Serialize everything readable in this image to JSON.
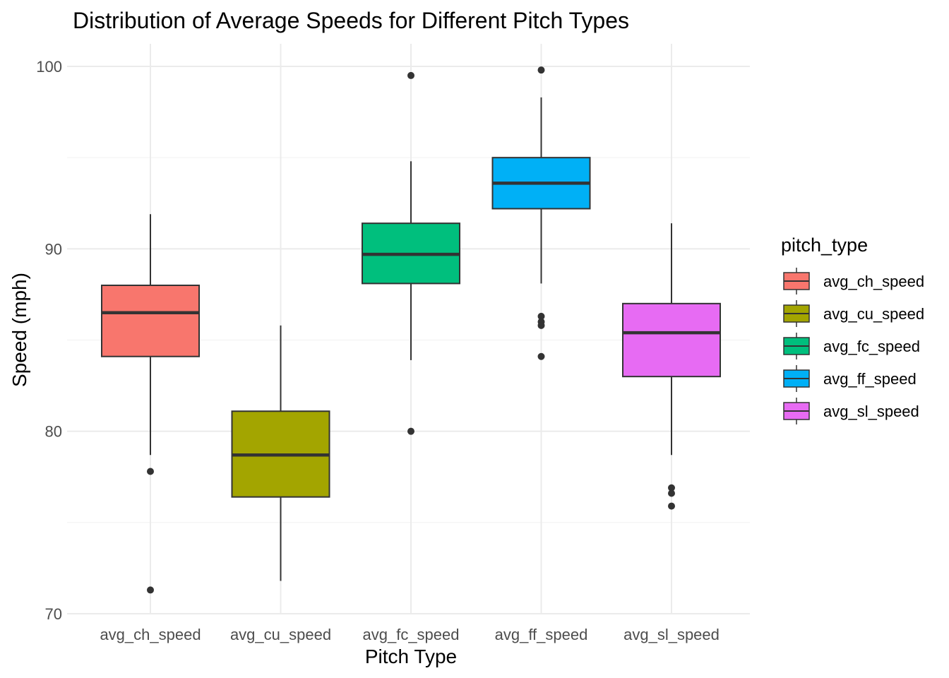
{
  "chart_data": {
    "type": "boxplot",
    "title": "Distribution of Average Speeds for Different Pitch Types",
    "xlabel": "Pitch Type",
    "ylabel": "Speed (mph)",
    "ylim": [
      70,
      100
    ],
    "yticks": [
      70,
      80,
      90,
      100
    ],
    "grid": true,
    "legend": {
      "title": "pitch_type",
      "position": "right"
    },
    "categories": [
      "avg_ch_speed",
      "avg_cu_speed",
      "avg_fc_speed",
      "avg_ff_speed",
      "avg_sl_speed"
    ],
    "boxes": [
      {
        "name": "avg_ch_speed",
        "color": "#F8766D",
        "whisker_low": 78.7,
        "q1": 84.1,
        "median": 86.5,
        "q3": 88.0,
        "whisker_high": 91.9,
        "outliers": [
          77.8,
          71.3
        ]
      },
      {
        "name": "avg_cu_speed",
        "color": "#A3A500",
        "whisker_low": 71.8,
        "q1": 76.4,
        "median": 78.7,
        "q3": 81.1,
        "whisker_high": 85.8,
        "outliers": []
      },
      {
        "name": "avg_fc_speed",
        "color": "#00BF7D",
        "whisker_low": 83.9,
        "q1": 88.1,
        "median": 89.7,
        "q3": 91.4,
        "whisker_high": 94.8,
        "outliers": [
          99.5,
          80.0
        ]
      },
      {
        "name": "avg_ff_speed",
        "color": "#00B0F6",
        "whisker_low": 88.1,
        "q1": 92.2,
        "median": 93.6,
        "q3": 95.0,
        "whisker_high": 98.3,
        "outliers": [
          99.8,
          86.3,
          86.0,
          85.8,
          84.1
        ]
      },
      {
        "name": "avg_sl_speed",
        "color": "#E76BF3",
        "whisker_low": 78.7,
        "q1": 83.0,
        "median": 85.4,
        "q3": 87.0,
        "whisker_high": 91.4,
        "outliers": [
          76.9,
          76.6,
          75.9
        ]
      }
    ]
  }
}
